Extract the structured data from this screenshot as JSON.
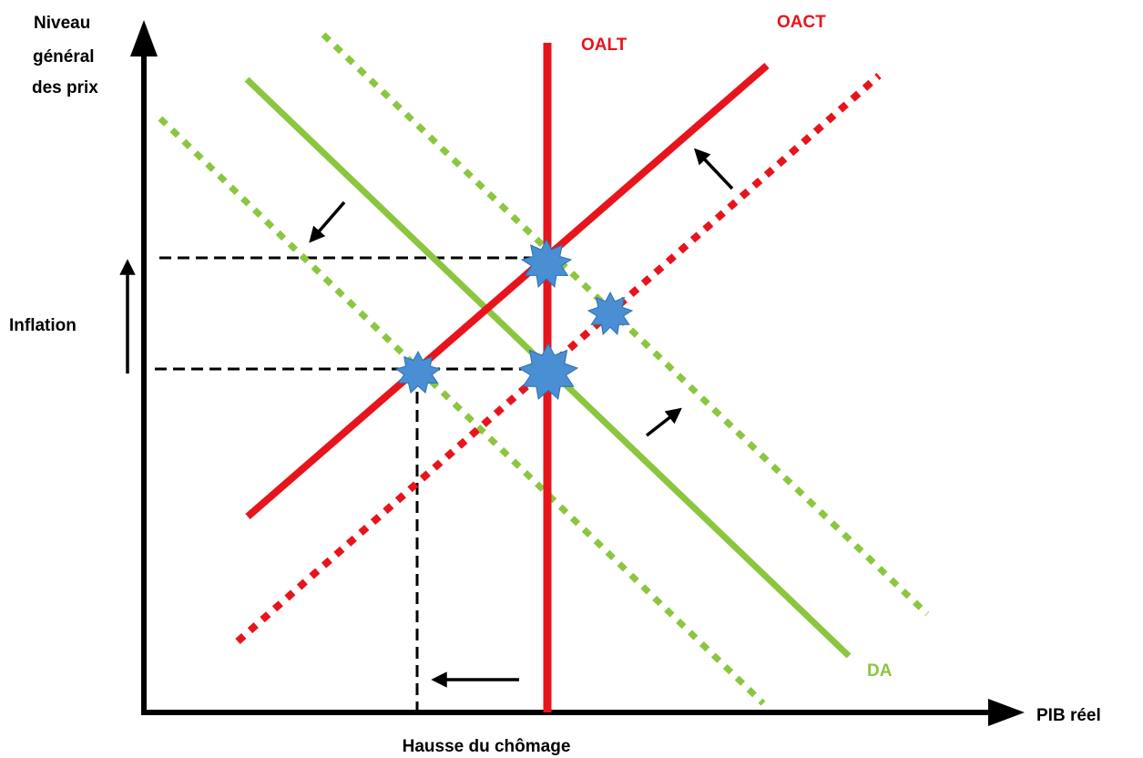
{
  "axes": {
    "y_label": [
      "Niveau",
      "général",
      "des prix"
    ],
    "x_label": "PIB réel",
    "left_label": "Inflation",
    "bottom_label": "Hausse du chômage"
  },
  "curves": {
    "oalt_label": "OALT",
    "oact_label": "OACT",
    "da_label": "DA"
  },
  "colors": {
    "supply": "#e8141c",
    "demand": "#8cc63f",
    "axis": "#000000",
    "equilibrium": "#4a8fd4"
  }
}
